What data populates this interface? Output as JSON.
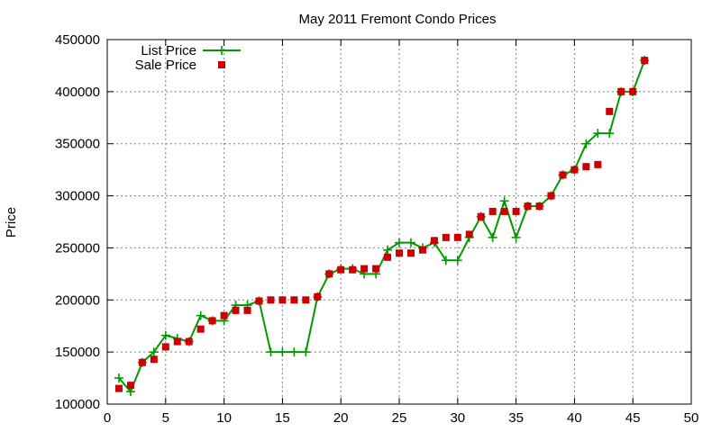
{
  "chart_data": {
    "type": "line",
    "title": "May 2011 Fremont Condo Prices",
    "xlabel": "",
    "ylabel": "Price",
    "xlim": [
      0,
      50
    ],
    "ylim": [
      100000,
      450000
    ],
    "x_ticks": [
      "0",
      "5",
      "10",
      "15",
      "20",
      "25",
      "30",
      "35",
      "40",
      "45",
      "50"
    ],
    "y_ticks": [
      "100000",
      "150000",
      "200000",
      "250000",
      "300000",
      "350000",
      "400000",
      "450000"
    ],
    "grid": true,
    "legend_position": "top-left",
    "series": [
      {
        "name": "List Price",
        "style": "line-with-plus-markers",
        "color": "#009900",
        "points": [
          [
            1,
            125000
          ],
          [
            2,
            112000
          ],
          [
            3,
            140000
          ],
          [
            4,
            150000
          ],
          [
            5,
            166000
          ],
          [
            6,
            163000
          ],
          [
            7,
            160000
          ],
          [
            8,
            185000
          ],
          [
            9,
            180000
          ],
          [
            10,
            180000
          ],
          [
            11,
            195000
          ],
          [
            12,
            195000
          ],
          [
            13,
            199000
          ],
          [
            14,
            150000
          ],
          [
            15,
            150000
          ],
          [
            16,
            150000
          ],
          [
            17,
            150000
          ],
          [
            18,
            203000
          ],
          [
            19,
            225000
          ],
          [
            20,
            230000
          ],
          [
            21,
            230000
          ],
          [
            22,
            225000
          ],
          [
            23,
            225000
          ],
          [
            24,
            248000
          ],
          [
            25,
            255000
          ],
          [
            26,
            255000
          ],
          [
            27,
            250000
          ],
          [
            28,
            255000
          ],
          [
            29,
            238000
          ],
          [
            30,
            238000
          ],
          [
            31,
            260000
          ],
          [
            32,
            280000
          ],
          [
            33,
            260000
          ],
          [
            34,
            295000
          ],
          [
            35,
            260000
          ],
          [
            36,
            290000
          ],
          [
            37,
            290000
          ],
          [
            38,
            300000
          ],
          [
            39,
            320000
          ],
          [
            40,
            325000
          ],
          [
            41,
            350000
          ],
          [
            42,
            360000
          ],
          [
            43,
            360000
          ],
          [
            44,
            400000
          ],
          [
            45,
            400000
          ],
          [
            46,
            430000
          ]
        ]
      },
      {
        "name": "Sale Price",
        "style": "square-markers",
        "color": "#cc0000",
        "points": [
          [
            1,
            115000
          ],
          [
            2,
            118000
          ],
          [
            3,
            140000
          ],
          [
            4,
            143000
          ],
          [
            5,
            155000
          ],
          [
            6,
            160000
          ],
          [
            7,
            160000
          ],
          [
            8,
            172000
          ],
          [
            9,
            180000
          ],
          [
            10,
            185000
          ],
          [
            11,
            190000
          ],
          [
            12,
            190000
          ],
          [
            13,
            199000
          ],
          [
            14,
            200000
          ],
          [
            15,
            200000
          ],
          [
            16,
            200000
          ],
          [
            17,
            200000
          ],
          [
            18,
            203000
          ],
          [
            19,
            225000
          ],
          [
            20,
            229000
          ],
          [
            21,
            229000
          ],
          [
            22,
            230000
          ],
          [
            23,
            230000
          ],
          [
            24,
            241000
          ],
          [
            25,
            245000
          ],
          [
            26,
            245000
          ],
          [
            27,
            248000
          ],
          [
            28,
            257000
          ],
          [
            29,
            260000
          ],
          [
            30,
            260000
          ],
          [
            31,
            263000
          ],
          [
            32,
            280000
          ],
          [
            33,
            285000
          ],
          [
            34,
            285000
          ],
          [
            35,
            285000
          ],
          [
            36,
            290000
          ],
          [
            37,
            290000
          ],
          [
            38,
            300000
          ],
          [
            39,
            320000
          ],
          [
            40,
            325000
          ],
          [
            41,
            328000
          ],
          [
            42,
            330000
          ],
          [
            43,
            381000
          ],
          [
            44,
            400000
          ],
          [
            45,
            400000
          ],
          [
            46,
            430000
          ]
        ]
      }
    ]
  }
}
